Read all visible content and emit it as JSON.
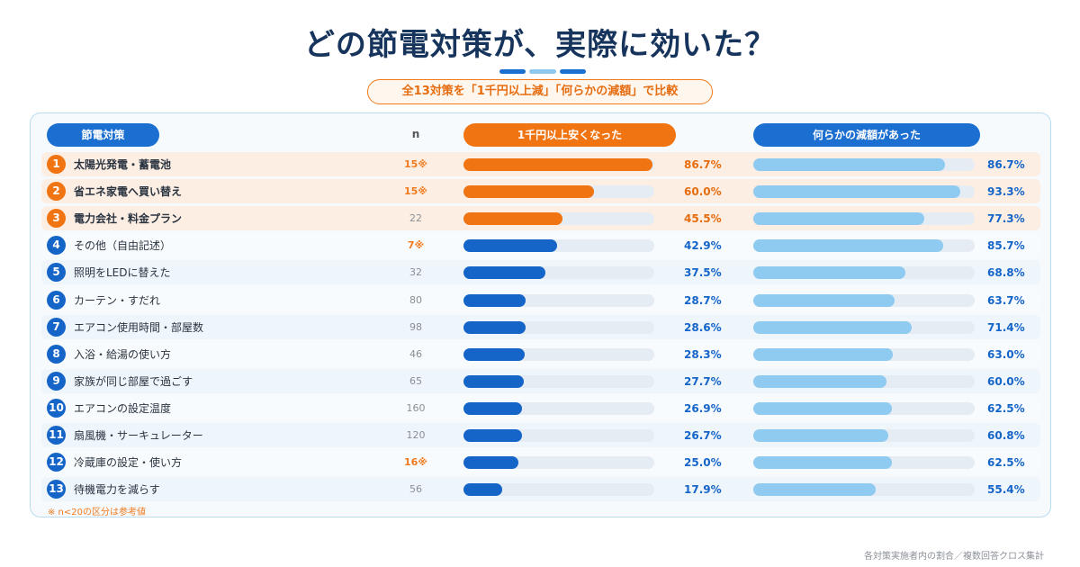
{
  "title": "どの節電対策が、実際に効いた？",
  "subtitle": "全13対策を「1千円以上減」「何らかの減額」で比較",
  "headers": {
    "measure": "節電対策",
    "n": "n",
    "series_a": "1千円以上安くなった",
    "series_b": "何らかの減額があった"
  },
  "note": "※ n<20の区分は参考値",
  "source": "各対策実施者内の割合／複数回答クロス集計",
  "colors": {
    "series_a_top": "#f07412",
    "series_a": "#1565c9",
    "series_b": "#8fcaf0",
    "top_bg": "#fdeee3",
    "small_n": "#ef7a1d"
  },
  "chart_data": {
    "type": "bar",
    "categories": [
      "太陽光発電・蓄電池",
      "省エネ家電へ買い替え",
      "電力会社・料金プラン",
      "その他（自由記述）",
      "照明をLEDに替えた",
      "カーテン・すだれ",
      "エアコン使用時間・部屋数",
      "入浴・給湯の使い方",
      "家族が同じ部屋で過ごす",
      "エアコンの設定温度",
      "扇風機・サーキュレーター",
      "冷蔵庫の設定・使い方",
      "待機電力を減らす"
    ],
    "ranks": [
      "1",
      "2",
      "3",
      "4",
      "5",
      "6",
      "7",
      "8",
      "9",
      "10",
      "11",
      "12",
      "13"
    ],
    "n": [
      "15※",
      "15※",
      "22",
      "7※",
      "32",
      "80",
      "98",
      "46",
      "65",
      "160",
      "120",
      "16※",
      "56"
    ],
    "small_n": [
      true,
      true,
      false,
      true,
      false,
      false,
      false,
      false,
      false,
      false,
      false,
      true,
      false
    ],
    "series": [
      {
        "name": "1千円以上安くなった",
        "values": [
          86.7,
          60.0,
          45.5,
          42.9,
          37.5,
          28.7,
          28.6,
          28.3,
          27.7,
          26.9,
          26.7,
          25.0,
          17.9
        ],
        "labels": [
          "86.7%",
          "60.0%",
          "45.5%",
          "42.9%",
          "37.5%",
          "28.7%",
          "28.6%",
          "28.3%",
          "27.7%",
          "26.9%",
          "26.7%",
          "25.0%",
          "17.9%"
        ]
      },
      {
        "name": "何らかの減額があった",
        "values": [
          86.7,
          93.3,
          77.3,
          85.7,
          68.8,
          63.7,
          71.4,
          63.0,
          60.0,
          62.5,
          60.8,
          62.5,
          55.4
        ],
        "labels": [
          "86.7%",
          "93.3%",
          "77.3%",
          "85.7%",
          "68.8%",
          "63.7%",
          "71.4%",
          "63.0%",
          "60.0%",
          "62.5%",
          "60.8%",
          "62.5%",
          "55.4%"
        ]
      }
    ],
    "xlim": [
      0,
      100
    ],
    "top_highlight_count": 3
  }
}
